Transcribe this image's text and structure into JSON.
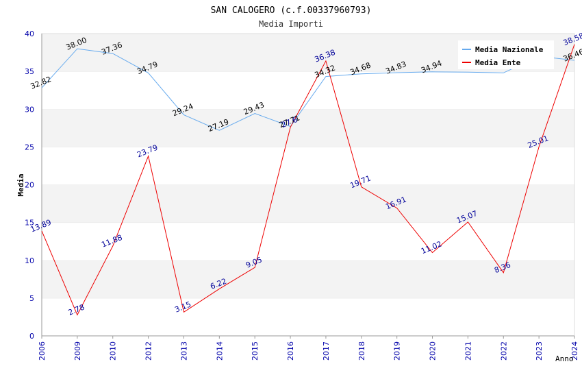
{
  "chart_data": {
    "type": "line",
    "title": "SAN CALOGERO (c.f.00337960793)",
    "subtitle": "Media Importi",
    "xlabel": "Anno",
    "ylabel": "Media",
    "ylim": [
      0,
      40
    ],
    "yticks": [
      "0",
      "5",
      "10",
      "15",
      "20",
      "25",
      "30",
      "35",
      "40"
    ],
    "categories": [
      "2006",
      "2009",
      "2010",
      "2012",
      "2013",
      "2014",
      "2015",
      "2016",
      "2017",
      "2018",
      "2019",
      "2020",
      "2021",
      "2022",
      "2023",
      "2024"
    ],
    "grid": "horizontal bands",
    "legend_position": "top-right",
    "series": [
      {
        "name": "Media Nazionale",
        "color": "#66aaee",
        "label_color": "#000000",
        "values": [
          32.82,
          38.0,
          37.36,
          34.79,
          29.24,
          27.19,
          29.43,
          27.71,
          34.32,
          34.68,
          34.83,
          34.94,
          34.9,
          34.8,
          37.0,
          36.46
        ],
        "labels": [
          "32.82",
          "38.00",
          "37.36",
          "34.79",
          "29.24",
          "27.19",
          "29.43",
          "27.71",
          "34.32",
          "34.68",
          "34.83",
          "34.94",
          "",
          "",
          "",
          "36.46"
        ]
      },
      {
        "name": "Media Ente",
        "color": "#ee0000",
        "label_color": "#000099",
        "values": [
          13.89,
          2.78,
          11.88,
          23.79,
          3.15,
          6.22,
          9.05,
          27.6,
          36.38,
          19.71,
          16.91,
          11.02,
          15.07,
          8.36,
          25.01,
          38.58
        ],
        "labels": [
          "13.89",
          "2.78",
          "11.88",
          "23.79",
          "3.15",
          "6.22",
          "9.05",
          "27.6",
          "36.38",
          "19.71",
          "16.91",
          "11.02",
          "15.07",
          "8.36",
          "25.01",
          "38.58"
        ]
      }
    ]
  }
}
